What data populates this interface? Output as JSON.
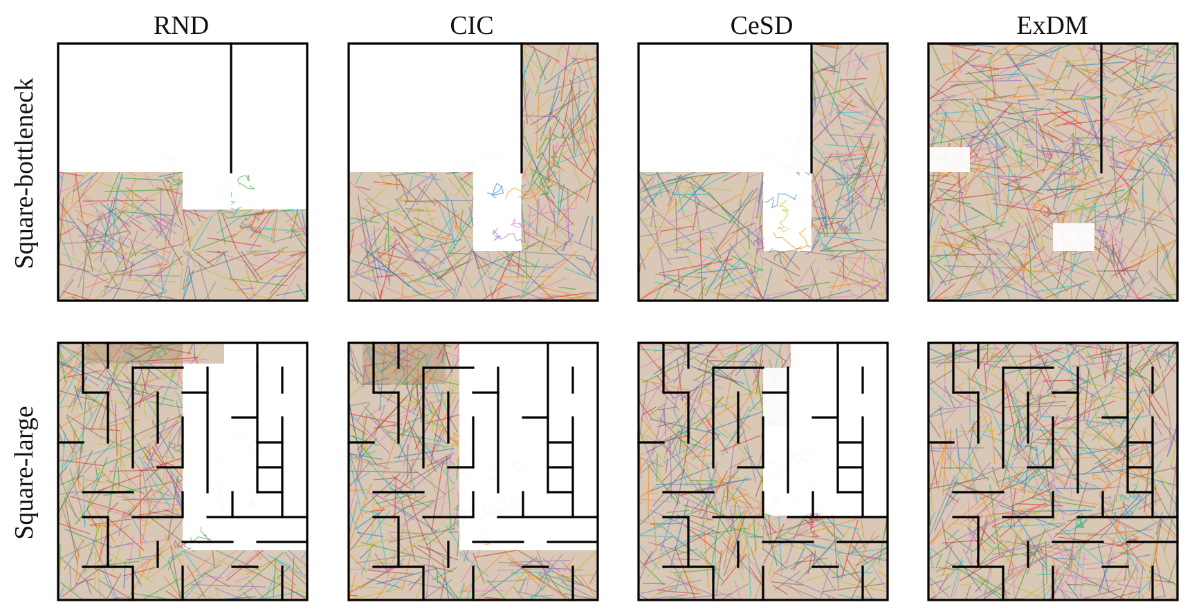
{
  "columns": [
    "RND",
    "CIC",
    "CeSD",
    "ExDM"
  ],
  "rows": [
    "Square-bottleneck",
    "Square-large"
  ],
  "trajectory_palette": [
    "#1f77b4",
    "#ff7f0e",
    "#2ca02c",
    "#d62728",
    "#9467bd",
    "#8c564b",
    "#e377c2",
    "#7f7f7f",
    "#bcbd22",
    "#17becf"
  ],
  "wall_color": "#000000"
}
